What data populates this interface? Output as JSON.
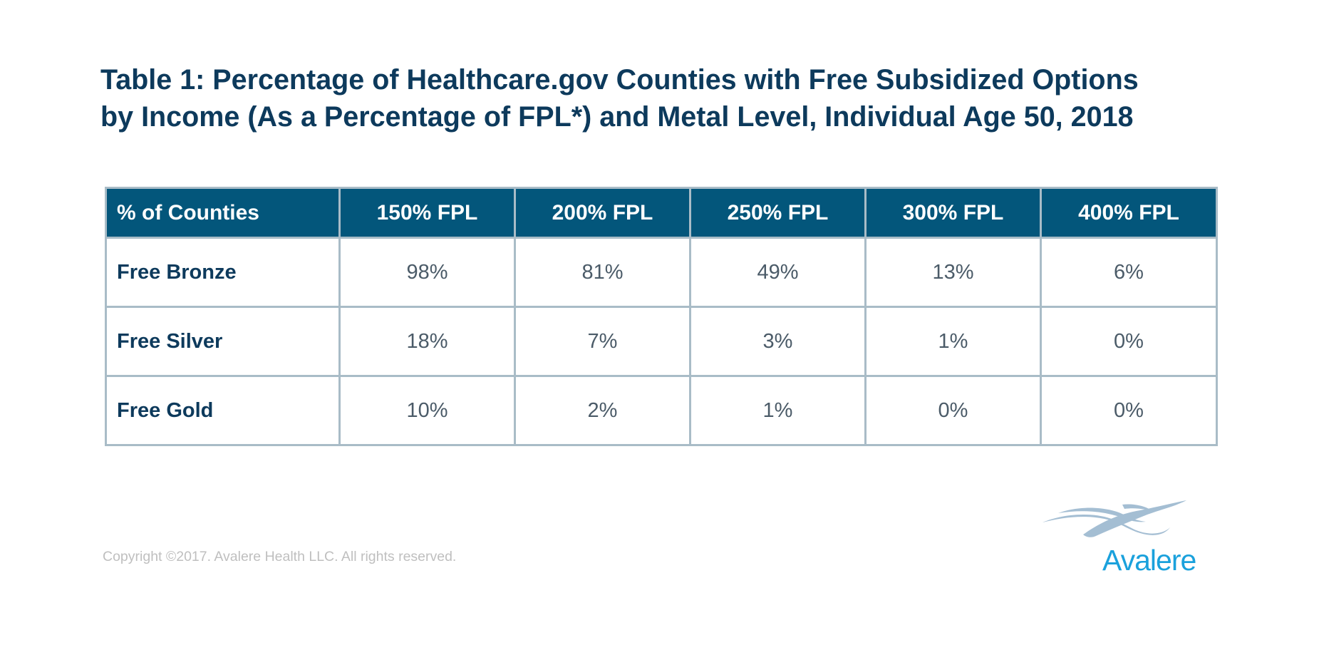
{
  "title": {
    "line1": "Table 1: Percentage of Healthcare.gov Counties with Free Subsidized Options",
    "line2": "by Income (As a Percentage of FPL*) and Metal Level, Individual Age 50, 2018"
  },
  "table": {
    "columns": [
      "% of Counties",
      "150% FPL",
      "200% FPL",
      "250% FPL",
      "300% FPL",
      "400% FPL"
    ],
    "rows": [
      {
        "label": "Free Bronze",
        "values": [
          "98%",
          "81%",
          "49%",
          "13%",
          "6%"
        ]
      },
      {
        "label": "Free Silver",
        "values": [
          "18%",
          "7%",
          "3%",
          "1%",
          "0%"
        ]
      },
      {
        "label": "Free Gold",
        "values": [
          "10%",
          "2%",
          "1%",
          "0%",
          "0%"
        ]
      }
    ]
  },
  "footer": {
    "copyright": "Copyright ©2017. Avalere Health LLC. All rights reserved."
  },
  "logo": {
    "brand": "Avalere",
    "icon": "avalere-swoosh-icon",
    "brand_color": "#1aa1dc",
    "swoosh_color": "#a4bed3"
  },
  "colors": {
    "header_bg": "#03567b",
    "title": "#0d3a5c",
    "border": "#a9bcc7",
    "value_text": "#4b5b68"
  }
}
